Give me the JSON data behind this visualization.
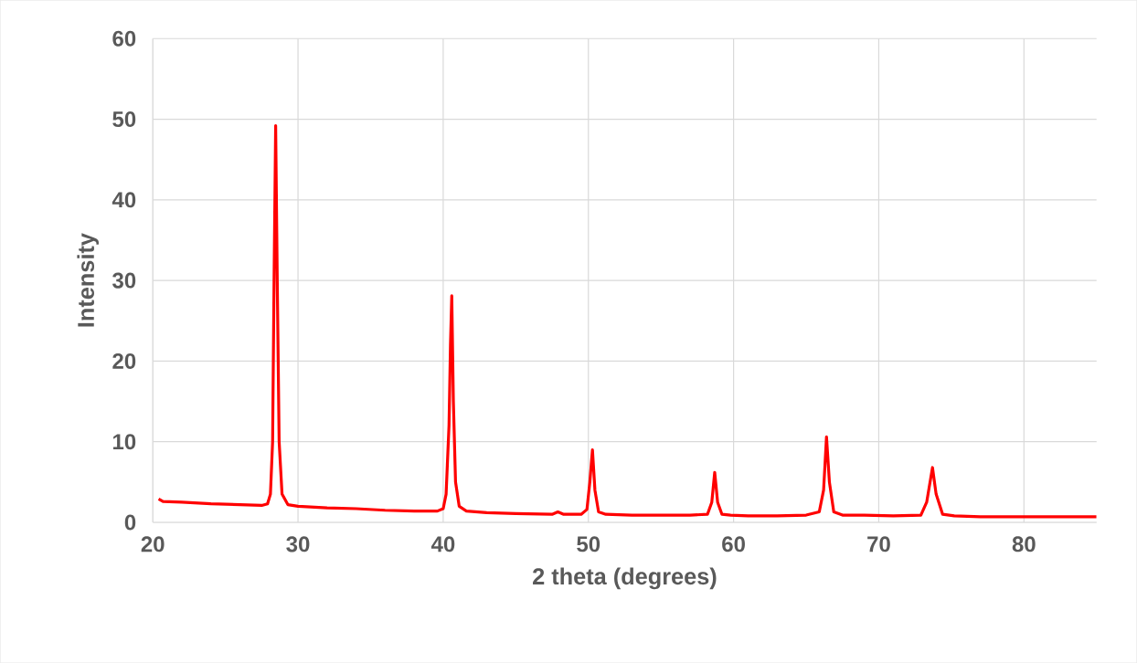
{
  "chart_data": {
    "type": "line",
    "xlabel": "2 theta (degrees)",
    "ylabel": "Intensity",
    "xlim": [
      20,
      85
    ],
    "ylim": [
      0,
      60
    ],
    "xticks": [
      20,
      30,
      40,
      50,
      60,
      70,
      80
    ],
    "yticks": [
      0,
      10,
      20,
      30,
      40,
      50,
      60
    ],
    "grid": true,
    "series": [
      {
        "color": "#ff0000",
        "x": [
          20.4,
          20.7,
          22,
          24,
          26,
          27.5,
          27.9,
          28.1,
          28.25,
          28.35,
          28.46,
          28.57,
          28.7,
          28.9,
          29.3,
          30,
          32,
          34,
          36,
          38,
          39.6,
          40.0,
          40.2,
          40.4,
          40.5,
          40.59,
          40.7,
          40.85,
          41.1,
          41.6,
          43,
          45,
          47.5,
          47.9,
          48.3,
          49.5,
          49.9,
          50.1,
          50.28,
          50.45,
          50.7,
          51.2,
          53,
          55,
          57,
          58.2,
          58.5,
          58.7,
          58.9,
          59.2,
          59.8,
          61,
          63,
          65,
          65.9,
          66.2,
          66.4,
          66.6,
          66.9,
          67.5,
          69,
          71,
          72.9,
          73.3,
          73.7,
          73.95,
          74.4,
          75.2,
          77,
          80,
          85
        ],
        "values": [
          2.9,
          2.6,
          2.5,
          2.3,
          2.2,
          2.1,
          2.3,
          3.5,
          10,
          30,
          49.2,
          30,
          10,
          3.5,
          2.2,
          2.0,
          1.8,
          1.7,
          1.5,
          1.4,
          1.4,
          1.7,
          3.5,
          12,
          22,
          28.1,
          15,
          5,
          2,
          1.4,
          1.2,
          1.1,
          1.0,
          1.3,
          1.0,
          1.0,
          1.6,
          5,
          9.0,
          4,
          1.3,
          1.0,
          0.9,
          0.9,
          0.9,
          1.0,
          2.5,
          6.2,
          2.5,
          1.0,
          0.9,
          0.8,
          0.8,
          0.9,
          1.3,
          4,
          10.6,
          5,
          1.3,
          0.9,
          0.9,
          0.8,
          0.9,
          2.5,
          6.8,
          3.5,
          1.0,
          0.8,
          0.7,
          0.7,
          0.7
        ]
      }
    ]
  }
}
